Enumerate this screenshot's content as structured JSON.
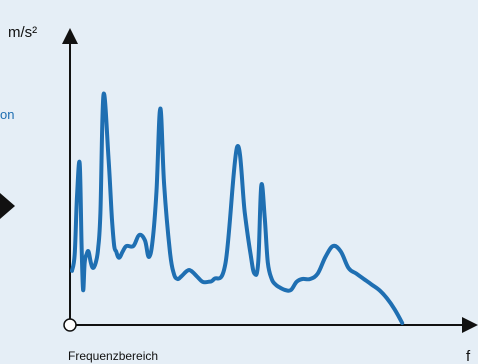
{
  "colors": {
    "background": "#e5eef6",
    "series": "#1f6fb2",
    "axis": "#111111",
    "side_fragment": "#1f6fb2"
  },
  "side_fragment_text": "on",
  "chart_data": {
    "type": "line",
    "ylabel": "m/s²",
    "xlabel": "f",
    "xaxis_caption": "Frequenzbereich",
    "xlim": [
      0,
      100
    ],
    "ylim": [
      0,
      100
    ],
    "grid": false,
    "legend": "none",
    "series": [
      {
        "x": [
          0,
          0.7,
          1.3,
          2.0,
          2.5,
          2.9,
          3.3,
          3.8,
          4.3,
          4.9,
          5.5,
          6.2,
          6.8,
          7.4,
          8.2,
          9.5,
          10.4,
          11.0,
          11.5,
          12.0,
          12.5,
          13.2,
          14.2,
          16,
          17.5,
          19,
          20,
          21,
          22,
          23,
          24,
          25.5,
          26.5,
          27.5,
          28.5,
          30,
          31,
          32.5,
          34,
          35.5,
          37,
          40,
          43,
          45,
          46.5,
          47.5,
          48.5,
          49.3,
          50.2,
          51,
          52,
          53,
          54,
          55.5,
          57,
          58.5,
          60,
          62,
          64,
          66,
          68,
          70,
          72,
          74,
          76,
          78,
          80,
          82,
          84,
          86,
          88,
          90,
          92,
          94,
          96,
          98,
          100
        ],
        "y": [
          19,
          25,
          46,
          58,
          28,
          12,
          22,
          25,
          26,
          22,
          20,
          22,
          27,
          40,
          83,
          60,
          38,
          28,
          26,
          24,
          24,
          26,
          28,
          28,
          32,
          30,
          24,
          30,
          48,
          78,
          50,
          26,
          18,
          16,
          17,
          19,
          19,
          17,
          15,
          15,
          16,
          22,
          64,
          40,
          25,
          18,
          22,
          50,
          38,
          22,
          16,
          14,
          13,
          12,
          12,
          15,
          16,
          16,
          18,
          24,
          28,
          26,
          20,
          18,
          16,
          14,
          12,
          9,
          5,
          0,
          0,
          0,
          0,
          0,
          0,
          0,
          0
        ],
        "values_note_hidden": null
      }
    ]
  }
}
